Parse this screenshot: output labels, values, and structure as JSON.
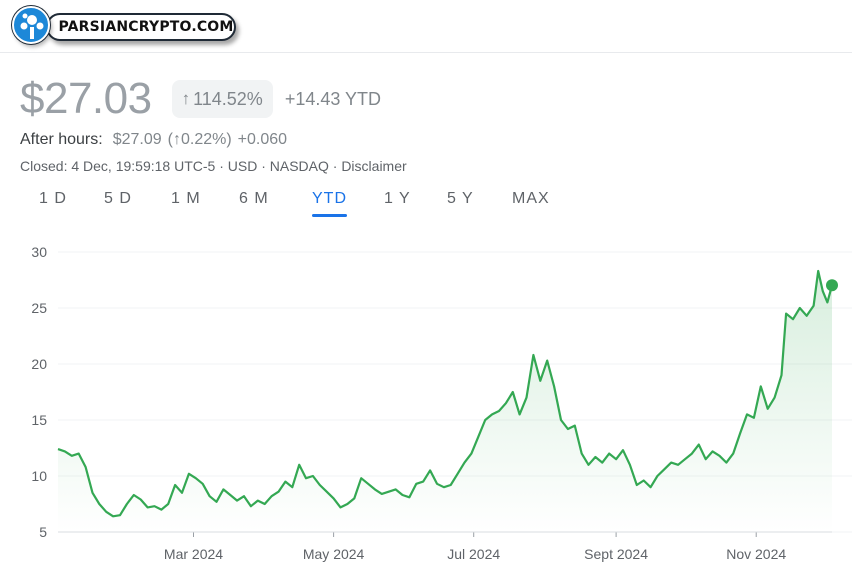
{
  "logo": {
    "text": "PARSIANCRYPTO.COM"
  },
  "quote": {
    "price": "$27.03",
    "change_pct": "114.52%",
    "change_abs": "+14.43 YTD",
    "after_hours_label": "After hours:",
    "after_hours_price": "$27.09",
    "after_hours_pct": "(↑0.22%)",
    "after_hours_abs": "+0.060",
    "meta": "Closed: 4 Dec, 19:59:18 UTC-5 · USD · NASDAQ · Disclaimer"
  },
  "tabs": [
    {
      "label": "1 D"
    },
    {
      "label": "5 D"
    },
    {
      "label": "1 M"
    },
    {
      "label": "6 M"
    },
    {
      "label": "YTD",
      "active": true
    },
    {
      "label": "1 Y"
    },
    {
      "label": "5 Y"
    },
    {
      "label": "MAX"
    }
  ],
  "colors": {
    "line": "#34a853",
    "accent": "#1a73e8",
    "grid": "#f1f3f4"
  },
  "chart_data": {
    "type": "area",
    "x_axis": "date",
    "x_ticks": [
      "Mar 2024",
      "May 2024",
      "Jul 2024",
      "Sept 2024",
      "Nov 2024"
    ],
    "y_ticks": [
      5,
      10,
      15,
      20,
      25,
      30
    ],
    "ylim": [
      5,
      30
    ],
    "xlim": [
      "2024-01-02",
      "2024-12-04"
    ],
    "grid": true,
    "series": [
      {
        "points": [
          [
            "2024-01-02",
            12.4
          ],
          [
            "2024-01-05",
            12.2
          ],
          [
            "2024-01-08",
            11.8
          ],
          [
            "2024-01-11",
            12.0
          ],
          [
            "2024-01-14",
            10.8
          ],
          [
            "2024-01-17",
            8.5
          ],
          [
            "2024-01-20",
            7.5
          ],
          [
            "2024-01-23",
            6.8
          ],
          [
            "2024-01-26",
            6.4
          ],
          [
            "2024-01-29",
            6.5
          ],
          [
            "2024-02-01",
            7.5
          ],
          [
            "2024-02-04",
            8.3
          ],
          [
            "2024-02-07",
            7.9
          ],
          [
            "2024-02-10",
            7.2
          ],
          [
            "2024-02-13",
            7.3
          ],
          [
            "2024-02-16",
            7.0
          ],
          [
            "2024-02-19",
            7.5
          ],
          [
            "2024-02-22",
            9.2
          ],
          [
            "2024-02-25",
            8.5
          ],
          [
            "2024-02-28",
            10.2
          ],
          [
            "2024-03-02",
            9.8
          ],
          [
            "2024-03-05",
            9.3
          ],
          [
            "2024-03-08",
            8.2
          ],
          [
            "2024-03-11",
            7.7
          ],
          [
            "2024-03-14",
            8.8
          ],
          [
            "2024-03-17",
            8.3
          ],
          [
            "2024-03-20",
            7.8
          ],
          [
            "2024-03-23",
            8.2
          ],
          [
            "2024-03-26",
            7.3
          ],
          [
            "2024-03-29",
            7.8
          ],
          [
            "2024-04-01",
            7.5
          ],
          [
            "2024-04-04",
            8.2
          ],
          [
            "2024-04-07",
            8.6
          ],
          [
            "2024-04-10",
            9.5
          ],
          [
            "2024-04-13",
            9.0
          ],
          [
            "2024-04-16",
            11.0
          ],
          [
            "2024-04-19",
            9.8
          ],
          [
            "2024-04-22",
            10.0
          ],
          [
            "2024-04-25",
            9.2
          ],
          [
            "2024-04-28",
            8.6
          ],
          [
            "2024-05-01",
            8.0
          ],
          [
            "2024-05-04",
            7.2
          ],
          [
            "2024-05-07",
            7.5
          ],
          [
            "2024-05-10",
            8.0
          ],
          [
            "2024-05-13",
            9.8
          ],
          [
            "2024-05-16",
            9.3
          ],
          [
            "2024-05-19",
            8.8
          ],
          [
            "2024-05-22",
            8.4
          ],
          [
            "2024-05-25",
            8.6
          ],
          [
            "2024-05-28",
            8.8
          ],
          [
            "2024-05-31",
            8.3
          ],
          [
            "2024-06-03",
            8.1
          ],
          [
            "2024-06-06",
            9.3
          ],
          [
            "2024-06-09",
            9.5
          ],
          [
            "2024-06-12",
            10.5
          ],
          [
            "2024-06-15",
            9.3
          ],
          [
            "2024-06-18",
            9.0
          ],
          [
            "2024-06-21",
            9.2
          ],
          [
            "2024-06-24",
            10.2
          ],
          [
            "2024-06-27",
            11.2
          ],
          [
            "2024-06-30",
            12.0
          ],
          [
            "2024-07-03",
            13.5
          ],
          [
            "2024-07-06",
            15.0
          ],
          [
            "2024-07-09",
            15.5
          ],
          [
            "2024-07-12",
            15.8
          ],
          [
            "2024-07-15",
            16.5
          ],
          [
            "2024-07-18",
            17.5
          ],
          [
            "2024-07-21",
            15.5
          ],
          [
            "2024-07-24",
            17.0
          ],
          [
            "2024-07-27",
            20.8
          ],
          [
            "2024-07-30",
            18.5
          ],
          [
            "2024-08-02",
            20.3
          ],
          [
            "2024-08-05",
            18.0
          ],
          [
            "2024-08-08",
            15.0
          ],
          [
            "2024-08-11",
            14.2
          ],
          [
            "2024-08-14",
            14.5
          ],
          [
            "2024-08-17",
            12.0
          ],
          [
            "2024-08-20",
            11.0
          ],
          [
            "2024-08-23",
            11.7
          ],
          [
            "2024-08-26",
            11.2
          ],
          [
            "2024-08-29",
            12.0
          ],
          [
            "2024-09-01",
            11.5
          ],
          [
            "2024-09-04",
            12.3
          ],
          [
            "2024-09-07",
            11.0
          ],
          [
            "2024-09-10",
            9.2
          ],
          [
            "2024-09-13",
            9.6
          ],
          [
            "2024-09-16",
            9.0
          ],
          [
            "2024-09-19",
            10.0
          ],
          [
            "2024-09-22",
            10.6
          ],
          [
            "2024-09-25",
            11.2
          ],
          [
            "2024-09-28",
            11.0
          ],
          [
            "2024-10-01",
            11.5
          ],
          [
            "2024-10-04",
            12.0
          ],
          [
            "2024-10-07",
            12.8
          ],
          [
            "2024-10-10",
            11.5
          ],
          [
            "2024-10-13",
            12.2
          ],
          [
            "2024-10-16",
            11.8
          ],
          [
            "2024-10-19",
            11.2
          ],
          [
            "2024-10-22",
            12.0
          ],
          [
            "2024-10-25",
            13.8
          ],
          [
            "2024-10-28",
            15.5
          ],
          [
            "2024-10-31",
            15.2
          ],
          [
            "2024-11-03",
            18.0
          ],
          [
            "2024-11-06",
            16.0
          ],
          [
            "2024-11-09",
            17.0
          ],
          [
            "2024-11-12",
            19.0
          ],
          [
            "2024-11-14",
            24.5
          ],
          [
            "2024-11-17",
            24.0
          ],
          [
            "2024-11-20",
            25.0
          ],
          [
            "2024-11-23",
            24.3
          ],
          [
            "2024-11-26",
            25.2
          ],
          [
            "2024-11-28",
            28.3
          ],
          [
            "2024-11-30",
            26.5
          ],
          [
            "2024-12-02",
            25.5
          ],
          [
            "2024-12-04",
            27.03
          ]
        ]
      }
    ]
  }
}
